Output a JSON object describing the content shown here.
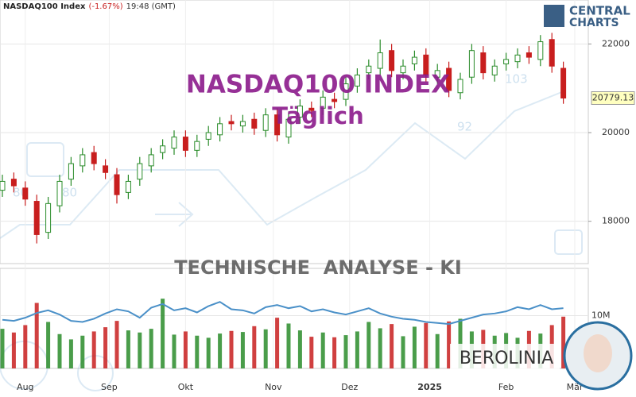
{
  "header": {
    "name": "NASDAQ100 Index",
    "change": "(-1.67%)",
    "time": "19:48 (GMT)"
  },
  "logo": {
    "line1": "CENTRAL",
    "line2": "CHARTS"
  },
  "watermark": {
    "title": "NASDAQ100 INDEX",
    "period": "Täglich",
    "analysis": "TECHNISCHE  ANALYSE - KI",
    "brand": "BEROLINIA",
    "background_labels": [
      "80",
      "80",
      "92",
      "103"
    ]
  },
  "chart_data": [
    {
      "type": "candlestick",
      "x": [
        0,
        3,
        6,
        9,
        12,
        15,
        18,
        21,
        24,
        27,
        30,
        33,
        36,
        39,
        42,
        45,
        48,
        51,
        54,
        57,
        60,
        63,
        66,
        69,
        72,
        75,
        78,
        81,
        84,
        87,
        90,
        93,
        96,
        99,
        102,
        105,
        108,
        111,
        114,
        117,
        120,
        123,
        126,
        129,
        132,
        135,
        138,
        141,
        144,
        147
      ],
      "open": [
        18700,
        18950,
        18750,
        18450,
        17750,
        18350,
        18950,
        19250,
        19550,
        19250,
        19050,
        18650,
        18950,
        19250,
        19550,
        19650,
        19900,
        19600,
        19850,
        19950,
        20250,
        20150,
        20300,
        20050,
        20400,
        19900,
        20350,
        20550,
        20550,
        20750,
        20750,
        21050,
        21350,
        21450,
        21850,
        21350,
        21550,
        21750,
        21250,
        21450,
        20900,
        21250,
        21800,
        21300,
        21550,
        21600,
        21800,
        21650,
        22100,
        21450
      ],
      "high": [
        19050,
        19100,
        18900,
        18600,
        18550,
        19050,
        19450,
        19650,
        19700,
        19400,
        19200,
        19050,
        19450,
        19650,
        19850,
        20050,
        20050,
        19950,
        20150,
        20350,
        20400,
        20400,
        20450,
        20550,
        20550,
        20450,
        20750,
        20700,
        20950,
        20900,
        21250,
        21450,
        21650,
        22100,
        22000,
        21650,
        21850,
        21900,
        21550,
        21600,
        21350,
        22000,
        21950,
        21650,
        21800,
        21900,
        21950,
        22200,
        22250,
        21600
      ],
      "low": [
        18550,
        18650,
        18350,
        17500,
        17600,
        18200,
        18800,
        19100,
        19150,
        18950,
        18400,
        18500,
        18800,
        19100,
        19400,
        19500,
        19450,
        19450,
        19700,
        19800,
        20050,
        20000,
        19950,
        19900,
        19800,
        19750,
        20200,
        20350,
        20400,
        20550,
        20600,
        20900,
        21200,
        21300,
        21250,
        21200,
        21400,
        21150,
        21100,
        20800,
        20750,
        21100,
        21200,
        21150,
        21400,
        21450,
        21550,
        21500,
        21350,
        20650
      ],
      "close": [
        18900,
        18800,
        18500,
        17700,
        18400,
        18900,
        19300,
        19500,
        19300,
        19100,
        18600,
        18900,
        19300,
        19500,
        19700,
        19900,
        19600,
        19800,
        20000,
        20200,
        20200,
        20250,
        20100,
        20400,
        19950,
        20300,
        20600,
        20500,
        20800,
        20700,
        21100,
        21300,
        21500,
        21800,
        21400,
        21500,
        21700,
        21300,
        21400,
        20950,
        21200,
        21850,
        21350,
        21500,
        21650,
        21750,
        21700,
        22050,
        21500,
        20779.13
      ],
      "up_color": "#2a8c2a",
      "down_color": "#c81e1e",
      "xlim": [
        -0.625,
        153.54
      ],
      "ylim": [
        17045,
        22991
      ],
      "yticks": [
        18000,
        20000,
        22000
      ],
      "xticks": [
        {
          "value": 6,
          "label": "Aug"
        },
        {
          "value": 28,
          "label": "Sep"
        },
        {
          "value": 48,
          "label": "Okt"
        },
        {
          "value": 71,
          "label": "Nov"
        },
        {
          "value": 91,
          "label": "Dez"
        },
        {
          "value": 112,
          "label": "2025"
        },
        {
          "value": 132,
          "label": "Feb"
        },
        {
          "value": 150,
          "label": "Mär"
        }
      ],
      "last_price": 20779.13,
      "grid": true
    },
    {
      "type": "volume",
      "x": [
        0,
        3,
        6,
        9,
        12,
        15,
        18,
        21,
        24,
        27,
        30,
        33,
        36,
        39,
        42,
        45,
        48,
        51,
        54,
        57,
        60,
        63,
        66,
        69,
        72,
        75,
        78,
        81,
        84,
        87,
        90,
        93,
        96,
        99,
        102,
        105,
        108,
        111,
        114,
        117,
        120,
        123,
        126,
        129,
        132,
        135,
        138,
        141,
        144,
        147
      ],
      "values": [
        7500000,
        6800000,
        8200000,
        12400000,
        8800000,
        6500000,
        5500000,
        6200000,
        7000000,
        7800000,
        9000000,
        7200000,
        6800000,
        7500000,
        13200000,
        6400000,
        7000000,
        6200000,
        5800000,
        6600000,
        7100000,
        6900000,
        8000000,
        7400000,
        9600000,
        8500000,
        7200000,
        6000000,
        6800000,
        5900000,
        6300000,
        7000000,
        8800000,
        7600000,
        8400000,
        6100000,
        7900000,
        8600000,
        6500000,
        8900000,
        9400000,
        7000000,
        7300000,
        6200000,
        6700000,
        5800000,
        7100000,
        6600000,
        8200000,
        9800000
      ],
      "average": [
        9200000,
        9000000,
        9600000,
        10500000,
        11000000,
        10200000,
        9000000,
        8800000,
        9400000,
        10400000,
        11200000,
        10800000,
        9600000,
        11500000,
        12200000,
        11000000,
        11400000,
        10600000,
        11800000,
        12600000,
        11200000,
        11000000,
        10400000,
        11600000,
        12000000,
        11400000,
        11800000,
        10800000,
        11200000,
        10600000,
        10200000,
        10800000,
        11400000,
        10400000,
        9800000,
        9400000,
        9200000,
        8800000,
        8600000,
        8400000,
        9000000,
        9600000,
        10200000,
        10400000,
        10800000,
        11600000,
        11200000,
        12000000,
        11200000,
        11400000
      ],
      "line_color": "#4a90c8",
      "xlim": [
        -0.625,
        153.54
      ],
      "ylim": [
        0,
        18640000
      ],
      "yticks": [
        {
          "value": 10000000,
          "label": "10M"
        }
      ]
    }
  ]
}
